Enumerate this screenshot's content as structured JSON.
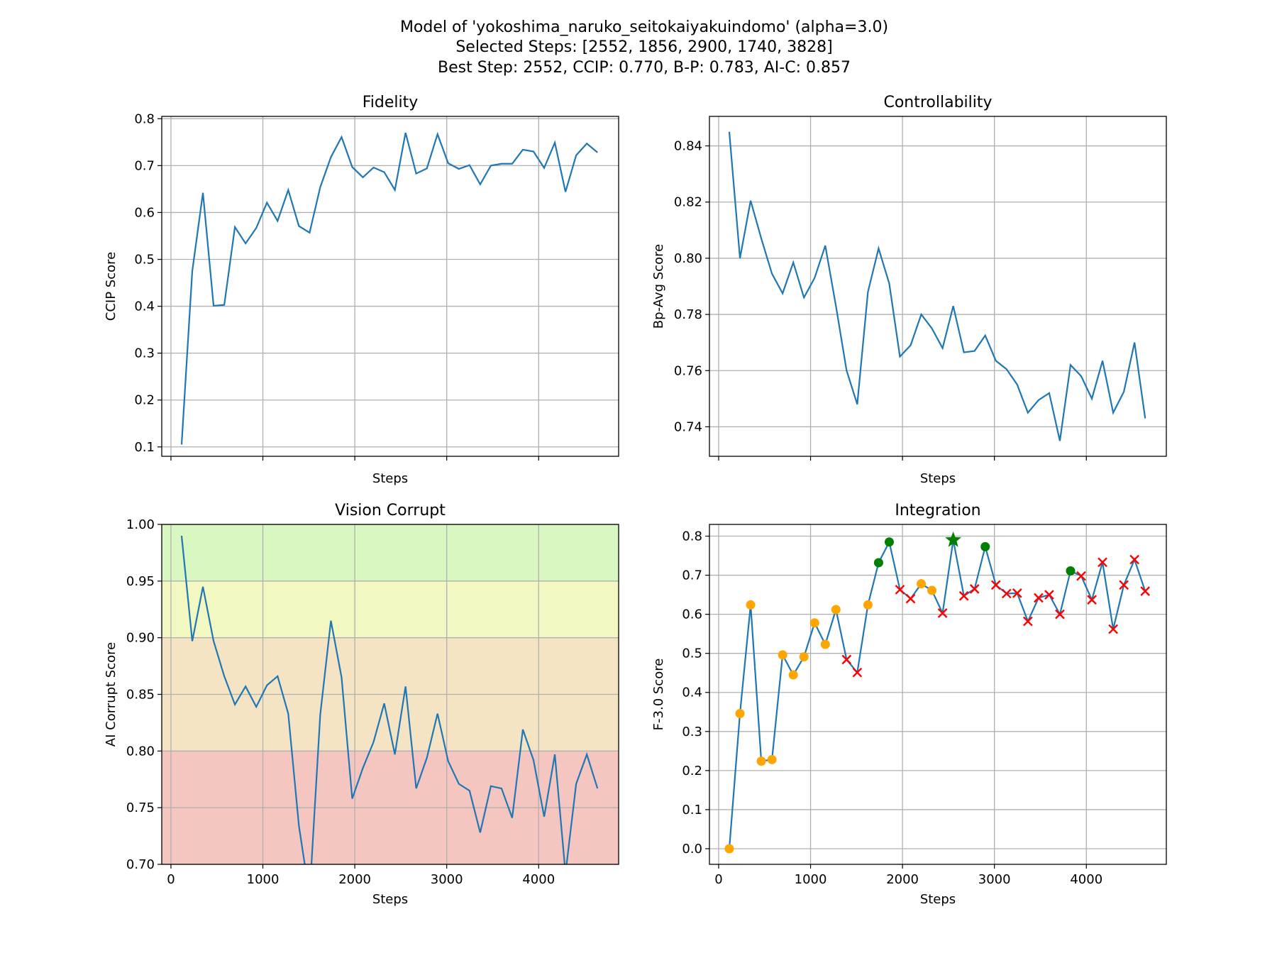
{
  "figure": {
    "title_lines": [
      "Model of 'yokoshima_naruko_seitokaiyakuindomo' (alpha=3.0)",
      "Selected Steps: [2552, 1856, 2900, 1740, 3828]",
      "Best Step: 2552, CCIP: 0.770, B-P: 0.783, AI-C: 0.857"
    ]
  },
  "chart_data": [
    {
      "id": "fidelity",
      "type": "line",
      "title": "Fidelity",
      "xlabel": "Steps",
      "ylabel": "CCIP Score",
      "show_xticklabels": false,
      "xlim": [
        -100,
        4870
      ],
      "ylim": [
        0.08,
        0.805
      ],
      "xticks": [
        0,
        1000,
        2000,
        3000,
        4000
      ],
      "yticks": [
        0.1,
        0.2,
        0.3,
        0.4,
        0.5,
        0.6,
        0.7,
        0.8
      ],
      "ytick_labels": [
        "0.1",
        "0.2",
        "0.3",
        "0.4",
        "0.5",
        "0.6",
        "0.7",
        "0.8"
      ],
      "grid": true,
      "line_color": "#1f77b4",
      "x": [
        116,
        232,
        348,
        464,
        580,
        696,
        812,
        928,
        1044,
        1160,
        1276,
        1392,
        1508,
        1624,
        1740,
        1856,
        1972,
        2088,
        2204,
        2320,
        2436,
        2552,
        2668,
        2784,
        2900,
        3016,
        3132,
        3248,
        3364,
        3480,
        3596,
        3712,
        3828,
        3944,
        4060,
        4176,
        4292,
        4408,
        4524,
        4640
      ],
      "y": [
        0.105,
        0.475,
        0.642,
        0.401,
        0.403,
        0.569,
        0.534,
        0.567,
        0.621,
        0.582,
        0.648,
        0.571,
        0.557,
        0.654,
        0.718,
        0.761,
        0.697,
        0.675,
        0.696,
        0.686,
        0.648,
        0.77,
        0.683,
        0.694,
        0.767,
        0.705,
        0.693,
        0.701,
        0.66,
        0.7,
        0.704,
        0.704,
        0.734,
        0.73,
        0.695,
        0.749,
        0.644,
        0.722,
        0.747,
        0.728
      ]
    },
    {
      "id": "controllability",
      "type": "line",
      "title": "Controllability",
      "xlabel": "Steps",
      "ylabel": "Bp-Avg Score",
      "show_xticklabels": false,
      "xlim": [
        -100,
        4870
      ],
      "ylim": [
        0.7295,
        0.8505
      ],
      "xticks": [
        0,
        1000,
        2000,
        3000,
        4000
      ],
      "yticks": [
        0.74,
        0.76,
        0.78,
        0.8,
        0.82,
        0.84
      ],
      "ytick_labels": [
        "0.74",
        "0.76",
        "0.78",
        "0.80",
        "0.82",
        "0.84"
      ],
      "grid": true,
      "line_color": "#1f77b4",
      "x": [
        116,
        232,
        348,
        464,
        580,
        696,
        812,
        928,
        1044,
        1160,
        1276,
        1392,
        1508,
        1624,
        1740,
        1856,
        1972,
        2088,
        2204,
        2320,
        2436,
        2552,
        2668,
        2784,
        2900,
        3016,
        3132,
        3248,
        3364,
        3480,
        3596,
        3712,
        3828,
        3944,
        4060,
        4176,
        4292,
        4408,
        4524,
        4640
      ],
      "y": [
        0.845,
        0.8,
        0.8205,
        0.807,
        0.7945,
        0.7875,
        0.7985,
        0.786,
        0.793,
        0.8045,
        0.783,
        0.76,
        0.748,
        0.788,
        0.8035,
        0.791,
        0.765,
        0.769,
        0.78,
        0.775,
        0.768,
        0.783,
        0.7665,
        0.767,
        0.7725,
        0.7635,
        0.7605,
        0.755,
        0.745,
        0.7495,
        0.752,
        0.735,
        0.762,
        0.758,
        0.75,
        0.7635,
        0.745,
        0.7525,
        0.77,
        0.743
      ]
    },
    {
      "id": "vision-corrupt",
      "type": "line",
      "title": "Vision Corrupt",
      "xlabel": "Steps",
      "ylabel": "AI Corrupt Score",
      "show_xticklabels": true,
      "xlim": [
        -100,
        4870
      ],
      "ylim": [
        0.7,
        1.0
      ],
      "xticks": [
        0,
        1000,
        2000,
        3000,
        4000
      ],
      "xtick_labels": [
        "0",
        "1000",
        "2000",
        "3000",
        "4000"
      ],
      "yticks": [
        0.7,
        0.75,
        0.8,
        0.85,
        0.9,
        0.95,
        1.0
      ],
      "ytick_labels": [
        "0.70",
        "0.75",
        "0.80",
        "0.85",
        "0.90",
        "0.95",
        "1.00"
      ],
      "grid": true,
      "line_color": "#1f77b4",
      "bands": [
        {
          "from": 0.95,
          "to": 1.0,
          "color": "#d9f7c1"
        },
        {
          "from": 0.9,
          "to": 0.95,
          "color": "#f3f7c1"
        },
        {
          "from": 0.8,
          "to": 0.9,
          "color": "#f5e4c3"
        },
        {
          "from": 0.7,
          "to": 0.8,
          "color": "#f5c6c0"
        }
      ],
      "x": [
        116,
        232,
        348,
        464,
        580,
        696,
        812,
        928,
        1044,
        1160,
        1276,
        1392,
        1508,
        1624,
        1740,
        1856,
        1972,
        2088,
        2204,
        2320,
        2436,
        2552,
        2668,
        2784,
        2900,
        3016,
        3132,
        3248,
        3364,
        3480,
        3596,
        3712,
        3828,
        3944,
        4060,
        4176,
        4292,
        4408,
        4524,
        4640
      ],
      "y": [
        0.99,
        0.897,
        0.945,
        0.897,
        0.866,
        0.841,
        0.857,
        0.839,
        0.858,
        0.866,
        0.833,
        0.734,
        0.672,
        0.832,
        0.915,
        0.865,
        0.758,
        0.785,
        0.808,
        0.842,
        0.797,
        0.857,
        0.767,
        0.794,
        0.833,
        0.791,
        0.771,
        0.765,
        0.728,
        0.769,
        0.767,
        0.741,
        0.819,
        0.792,
        0.742,
        0.797,
        0.692,
        0.771,
        0.797,
        0.767
      ]
    },
    {
      "id": "integration",
      "type": "line",
      "title": "Integration",
      "xlabel": "Steps",
      "ylabel": "F-3.0 Score",
      "show_xticklabels": true,
      "xlim": [
        -100,
        4870
      ],
      "ylim": [
        -0.04,
        0.83
      ],
      "xticks": [
        0,
        1000,
        2000,
        3000,
        4000
      ],
      "xtick_labels": [
        "0",
        "1000",
        "2000",
        "3000",
        "4000"
      ],
      "yticks": [
        0.0,
        0.1,
        0.2,
        0.3,
        0.4,
        0.5,
        0.6,
        0.7,
        0.8
      ],
      "ytick_labels": [
        "0.0",
        "0.1",
        "0.2",
        "0.3",
        "0.4",
        "0.5",
        "0.6",
        "0.7",
        "0.8"
      ],
      "grid": true,
      "line_color": "#1f77b4",
      "marker_colors": {
        "dot": "#ffa500",
        "selected": "#008000",
        "best": "#008000",
        "cross": "#ff0000"
      },
      "x": [
        116,
        232,
        348,
        464,
        580,
        696,
        812,
        928,
        1044,
        1160,
        1276,
        1392,
        1508,
        1624,
        1740,
        1856,
        1972,
        2088,
        2204,
        2320,
        2436,
        2552,
        2668,
        2784,
        2900,
        3016,
        3132,
        3248,
        3364,
        3480,
        3596,
        3712,
        3828,
        3944,
        4060,
        4176,
        4292,
        4408,
        4524,
        4640
      ],
      "y": [
        0.0,
        0.346,
        0.624,
        0.224,
        0.228,
        0.496,
        0.445,
        0.491,
        0.578,
        0.523,
        0.612,
        0.484,
        0.451,
        0.624,
        0.732,
        0.785,
        0.663,
        0.64,
        0.678,
        0.661,
        0.603,
        0.79,
        0.647,
        0.665,
        0.773,
        0.675,
        0.653,
        0.654,
        0.582,
        0.642,
        0.65,
        0.6,
        0.711,
        0.698,
        0.637,
        0.733,
        0.562,
        0.675,
        0.74,
        0.659
      ],
      "markers": [
        "dot",
        "dot",
        "dot",
        "dot",
        "dot",
        "dot",
        "dot",
        "dot",
        "dot",
        "dot",
        "dot",
        "cross",
        "cross",
        "dot",
        "selected",
        "selected",
        "cross",
        "cross",
        "dot",
        "dot",
        "cross",
        "best",
        "cross",
        "cross",
        "selected",
        "cross",
        "cross",
        "cross",
        "cross",
        "cross",
        "cross",
        "cross",
        "selected",
        "cross",
        "cross",
        "cross",
        "cross",
        "cross",
        "cross",
        "cross"
      ]
    }
  ]
}
